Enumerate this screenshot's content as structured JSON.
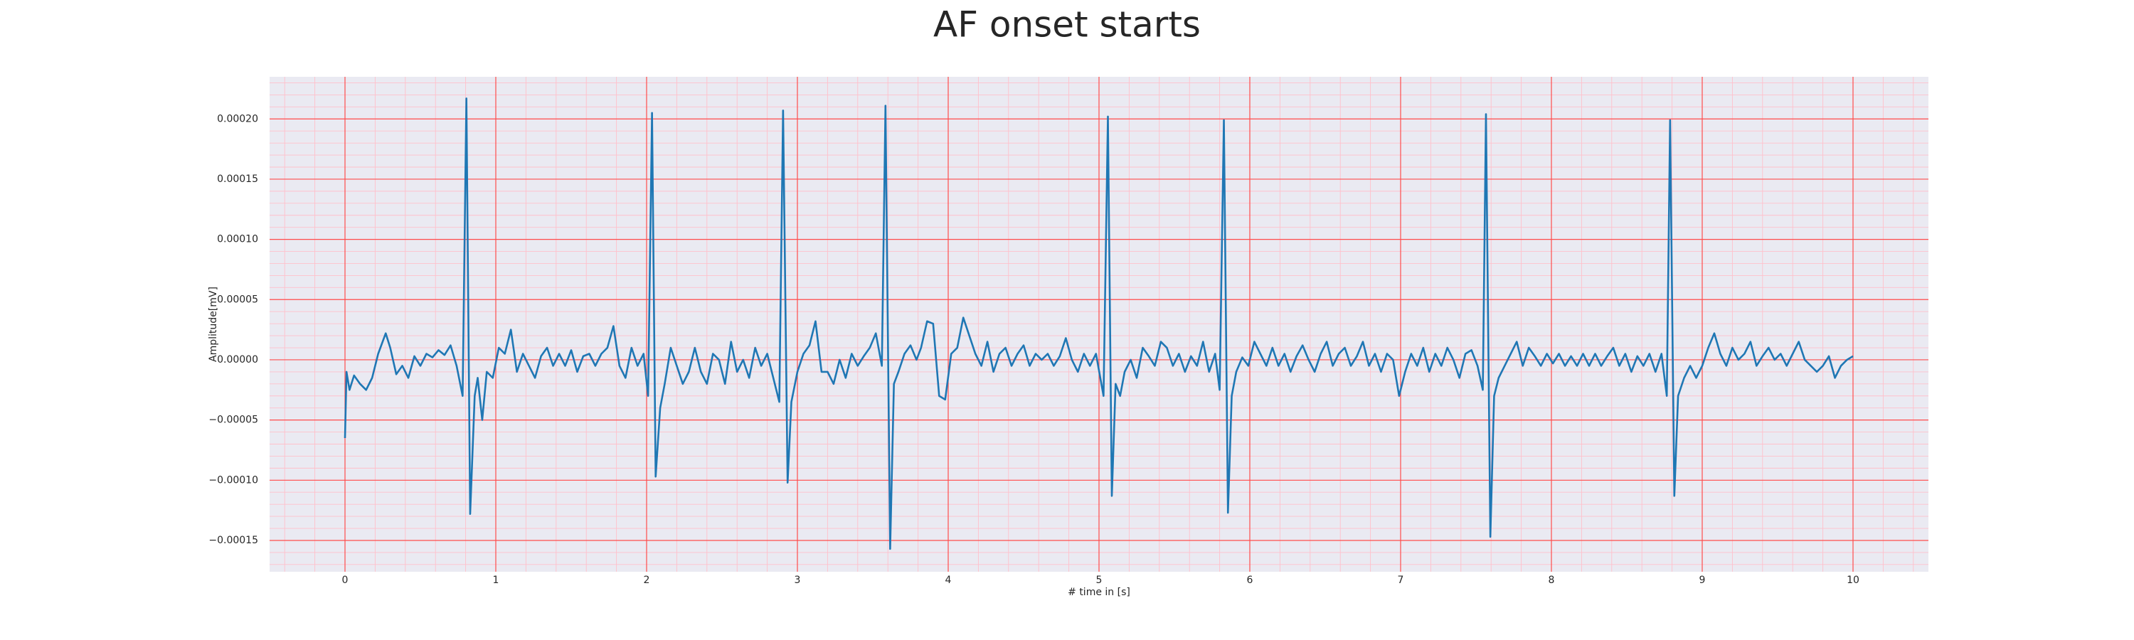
{
  "chart_data": {
    "type": "line",
    "title": "AF onset starts",
    "x_label": "# time in [s]",
    "y_label": "Amplitude[mV]",
    "color": "#1f77b4",
    "grid": true,
    "minor_grid": true,
    "xlim": [
      -0.5,
      10.5
    ],
    "xticks": [
      0,
      1,
      2,
      3,
      4,
      5,
      6,
      7,
      8,
      9,
      10
    ],
    "ylim": [
      -0.000176,
      0.000235
    ],
    "yticks": [
      {
        "value": -0.00015,
        "label": "−0.00015"
      },
      {
        "value": -0.0001,
        "label": "−0.00010"
      },
      {
        "value": -5e-05,
        "label": "−0.00005"
      },
      {
        "value": 0,
        "label": "0.00000"
      },
      {
        "value": 5e-05,
        "label": "0.00005"
      },
      {
        "value": 0.0001,
        "label": "0.00010"
      },
      {
        "value": 0.00015,
        "label": "0.00015"
      },
      {
        "value": 0.0002,
        "label": "0.00020"
      }
    ],
    "x": [
      0,
      0.01,
      0.03,
      0.06,
      0.1,
      0.14,
      0.18,
      0.22,
      0.27,
      0.3,
      0.34,
      0.38,
      0.42,
      0.46,
      0.5,
      0.54,
      0.58,
      0.62,
      0.66,
      0.7,
      0.74,
      0.78,
      0.805,
      0.83,
      0.86,
      0.88,
      0.91,
      0.94,
      0.98,
      1.02,
      1.06,
      1.1,
      1.14,
      1.18,
      1.22,
      1.26,
      1.3,
      1.34,
      1.38,
      1.42,
      1.46,
      1.5,
      1.54,
      1.58,
      1.62,
      1.66,
      1.7,
      1.74,
      1.78,
      1.82,
      1.86,
      1.9,
      1.94,
      1.98,
      2.01,
      2.036,
      2.06,
      2.09,
      2.12,
      2.16,
      2.2,
      2.24,
      2.28,
      2.32,
      2.36,
      2.4,
      2.44,
      2.48,
      2.52,
      2.56,
      2.6,
      2.64,
      2.68,
      2.72,
      2.76,
      2.8,
      2.84,
      2.88,
      2.905,
      2.935,
      2.96,
      3.0,
      3.04,
      3.08,
      3.12,
      3.16,
      3.2,
      3.24,
      3.28,
      3.32,
      3.36,
      3.4,
      3.44,
      3.48,
      3.52,
      3.56,
      3.584,
      3.615,
      3.64,
      3.67,
      3.71,
      3.75,
      3.79,
      3.82,
      3.86,
      3.9,
      3.94,
      3.98,
      4.02,
      4.06,
      4.1,
      4.14,
      4.18,
      4.22,
      4.26,
      4.3,
      4.34,
      4.38,
      4.42,
      4.46,
      4.5,
      4.54,
      4.58,
      4.62,
      4.66,
      4.7,
      4.74,
      4.78,
      4.82,
      4.86,
      4.9,
      4.94,
      4.98,
      5.03,
      5.059,
      5.085,
      5.11,
      5.14,
      5.17,
      5.21,
      5.25,
      5.29,
      5.33,
      5.37,
      5.41,
      5.45,
      5.49,
      5.53,
      5.57,
      5.61,
      5.65,
      5.69,
      5.73,
      5.77,
      5.8,
      5.828,
      5.855,
      5.88,
      5.91,
      5.95,
      5.99,
      6.03,
      6.07,
      6.11,
      6.15,
      6.19,
      6.23,
      6.27,
      6.31,
      6.35,
      6.39,
      6.43,
      6.47,
      6.51,
      6.55,
      6.59,
      6.63,
      6.67,
      6.71,
      6.75,
      6.79,
      6.83,
      6.87,
      6.91,
      6.95,
      6.99,
      7.03,
      7.07,
      7.11,
      7.15,
      7.19,
      7.23,
      7.27,
      7.31,
      7.35,
      7.39,
      7.43,
      7.47,
      7.51,
      7.545,
      7.566,
      7.595,
      7.62,
      7.65,
      7.69,
      7.73,
      7.77,
      7.81,
      7.85,
      7.89,
      7.93,
      7.97,
      8.01,
      8.05,
      8.09,
      8.13,
      8.17,
      8.21,
      8.25,
      8.29,
      8.33,
      8.37,
      8.41,
      8.45,
      8.49,
      8.53,
      8.57,
      8.61,
      8.65,
      8.69,
      8.73,
      8.765,
      8.787,
      8.815,
      8.84,
      8.88,
      8.92,
      8.96,
      9.0,
      9.04,
      9.08,
      9.12,
      9.16,
      9.2,
      9.24,
      9.28,
      9.32,
      9.36,
      9.4,
      9.44,
      9.48,
      9.52,
      9.56,
      9.6,
      9.64,
      9.68,
      9.72,
      9.76,
      9.8,
      9.84,
      9.88,
      9.92,
      9.96,
      10.0
    ],
    "values": [
      -6.5e-05,
      -1e-05,
      -2.5e-05,
      -1.3e-05,
      -2e-05,
      -2.5e-05,
      -1.5e-05,
      5e-06,
      2.2e-05,
      1e-05,
      -1.2e-05,
      -5e-06,
      -1.5e-05,
      3e-06,
      -5e-06,
      5e-06,
      2e-06,
      8e-06,
      4e-06,
      1.2e-05,
      -5e-06,
      -3e-05,
      0.000217,
      -0.000128,
      -3e-05,
      -1.5e-05,
      -5e-05,
      -1e-05,
      -1.5e-05,
      1e-05,
      5e-06,
      2.5e-05,
      -1e-05,
      5e-06,
      -5e-06,
      -1.5e-05,
      3e-06,
      1e-05,
      -5e-06,
      5e-06,
      -5e-06,
      8e-06,
      -1e-05,
      3e-06,
      5e-06,
      -5e-06,
      5e-06,
      1e-05,
      2.8e-05,
      -5e-06,
      -1.5e-05,
      1e-05,
      -5e-06,
      5e-06,
      -3e-05,
      0.000205,
      -9.7e-05,
      -4e-05,
      -2e-05,
      1e-05,
      -5e-06,
      -2e-05,
      -1e-05,
      1e-05,
      -1e-05,
      -2e-05,
      5e-06,
      0,
      -2e-05,
      1.5e-05,
      -1e-05,
      0,
      -1.5e-05,
      1e-05,
      -5e-06,
      5e-06,
      -1.5e-05,
      -3.5e-05,
      0.000207,
      -0.000102,
      -3.5e-05,
      -1e-05,
      5e-06,
      1.2e-05,
      3.2e-05,
      -1e-05,
      -1e-05,
      -2e-05,
      0,
      -1.5e-05,
      5e-06,
      -5e-06,
      3e-06,
      1e-05,
      2.2e-05,
      -5e-06,
      0.000211,
      -0.000157,
      -2e-05,
      -1e-05,
      5e-06,
      1.2e-05,
      0,
      1e-05,
      3.2e-05,
      3e-05,
      -3e-05,
      -3.3e-05,
      5e-06,
      1e-05,
      3.5e-05,
      2e-05,
      5e-06,
      -5e-06,
      1.5e-05,
      -1e-05,
      5e-06,
      1e-05,
      -5e-06,
      5e-06,
      1.2e-05,
      -5e-06,
      5e-06,
      0,
      5e-06,
      -5e-06,
      3e-06,
      1.8e-05,
      0,
      -1e-05,
      5e-06,
      -5e-06,
      5e-06,
      -3e-05,
      0.000202,
      -0.000113,
      -2e-05,
      -3e-05,
      -1e-05,
      0,
      -1.5e-05,
      1e-05,
      3e-06,
      -5e-06,
      1.5e-05,
      1e-05,
      -5e-06,
      5e-06,
      -1e-05,
      3e-06,
      -5e-06,
      1.5e-05,
      -1e-05,
      5e-06,
      -2.5e-05,
      0.000199,
      -0.000127,
      -3e-05,
      -1e-05,
      2e-06,
      -5e-06,
      1.5e-05,
      5e-06,
      -5e-06,
      1e-05,
      -5e-06,
      5e-06,
      -1e-05,
      3e-06,
      1.2e-05,
      0,
      -1e-05,
      5e-06,
      1.5e-05,
      -5e-06,
      5e-06,
      1e-05,
      -5e-06,
      3e-06,
      1.5e-05,
      -5e-06,
      5e-06,
      -1e-05,
      5e-06,
      0,
      -3e-05,
      -1e-05,
      5e-06,
      -5e-06,
      1e-05,
      -1e-05,
      5e-06,
      -5e-06,
      1e-05,
      0,
      -1.5e-05,
      5e-06,
      8e-06,
      -5e-06,
      -2.5e-05,
      0.000204,
      -0.000147,
      -3e-05,
      -1.5e-05,
      -5e-06,
      5e-06,
      1.5e-05,
      -5e-06,
      1e-05,
      3e-06,
      -5e-06,
      5e-06,
      -3e-06,
      5e-06,
      -5e-06,
      3e-06,
      -5e-06,
      5e-06,
      -5e-06,
      5e-06,
      -5e-06,
      3e-06,
      1e-05,
      -5e-06,
      5e-06,
      -1e-05,
      3e-06,
      -5e-06,
      5e-06,
      -1e-05,
      5e-06,
      -3e-05,
      0.000199,
      -0.000113,
      -3e-05,
      -1.5e-05,
      -5e-06,
      -1.5e-05,
      -5e-06,
      1e-05,
      2.2e-05,
      5e-06,
      -5e-06,
      1e-05,
      0,
      5e-06,
      1.5e-05,
      -5e-06,
      3e-06,
      1e-05,
      0,
      5e-06,
      -5e-06,
      5e-06,
      1.5e-05,
      0,
      -5e-06,
      -1e-05,
      -5e-06,
      3e-06,
      -1.5e-05,
      -5e-06,
      0,
      3e-06
    ]
  }
}
